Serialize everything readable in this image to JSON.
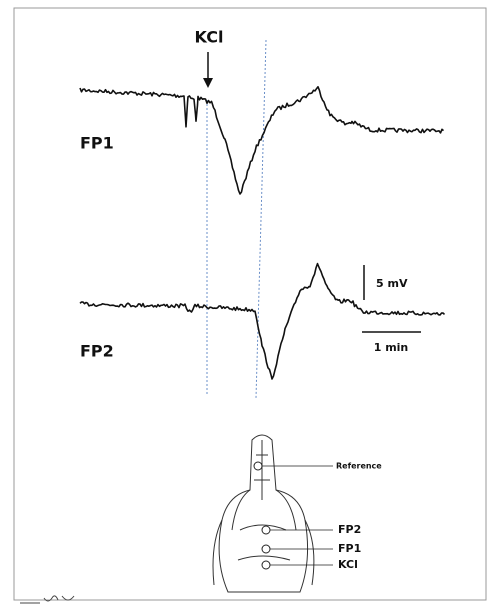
{
  "figure": {
    "stimulus": "KCl",
    "trace_1": "FP1",
    "trace_2": "FP2",
    "amplitude_scale": "5 mV",
    "time_scale": "1 min"
  },
  "skull_labels": [
    "Reference",
    "FP2",
    "FP1",
    "KCl"
  ]
}
